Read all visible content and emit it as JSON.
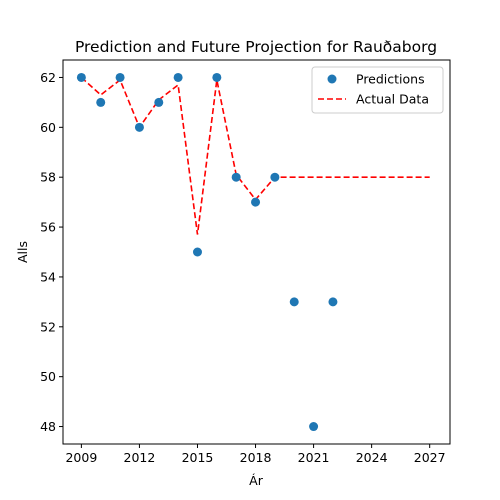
{
  "chart_data": {
    "type": "scatter",
    "title": "Prediction and Future Projection for Rauðaborg",
    "xlabel": "Ár",
    "ylabel": "Alls",
    "xlim": [
      2008.05,
      2028.05
    ],
    "ylim": [
      47.3,
      62.7
    ],
    "xticks": [
      2009,
      2012,
      2015,
      2018,
      2021,
      2024,
      2027
    ],
    "yticks": [
      48,
      50,
      52,
      54,
      56,
      58,
      60,
      62
    ],
    "grid": false,
    "legend_position": "top-right",
    "series": [
      {
        "name": "Predictions",
        "kind": "scatter",
        "color": "#1f77b4",
        "points": [
          {
            "x": 2009,
            "y": 62
          },
          {
            "x": 2010,
            "y": 61
          },
          {
            "x": 2011,
            "y": 62
          },
          {
            "x": 2012,
            "y": 60
          },
          {
            "x": 2013,
            "y": 61
          },
          {
            "x": 2014,
            "y": 62
          },
          {
            "x": 2015,
            "y": 55
          },
          {
            "x": 2016,
            "y": 62
          },
          {
            "x": 2017,
            "y": 58
          },
          {
            "x": 2018,
            "y": 57
          },
          {
            "x": 2019,
            "y": 58
          },
          {
            "x": 2020,
            "y": 53
          },
          {
            "x": 2021,
            "y": 48
          },
          {
            "x": 2022,
            "y": 53
          }
        ]
      },
      {
        "name": "Actual Data",
        "kind": "line",
        "style": "dashed",
        "color": "#ff0000",
        "points": [
          {
            "x": 2009,
            "y": 62.0
          },
          {
            "x": 2010,
            "y": 61.3
          },
          {
            "x": 2011,
            "y": 61.9
          },
          {
            "x": 2012,
            "y": 60.0
          },
          {
            "x": 2013,
            "y": 61.1
          },
          {
            "x": 2014,
            "y": 61.7
          },
          {
            "x": 2015,
            "y": 55.7
          },
          {
            "x": 2016,
            "y": 61.9
          },
          {
            "x": 2017,
            "y": 58.1
          },
          {
            "x": 2018,
            "y": 57.1
          },
          {
            "x": 2019,
            "y": 58.0
          },
          {
            "x": 2020,
            "y": 58.0
          },
          {
            "x": 2021,
            "y": 58.0
          },
          {
            "x": 2022,
            "y": 58.0
          },
          {
            "x": 2023,
            "y": 58.0
          },
          {
            "x": 2024,
            "y": 58.0
          },
          {
            "x": 2025,
            "y": 58.0
          },
          {
            "x": 2026,
            "y": 58.0
          },
          {
            "x": 2027,
            "y": 58.0
          }
        ]
      }
    ]
  }
}
